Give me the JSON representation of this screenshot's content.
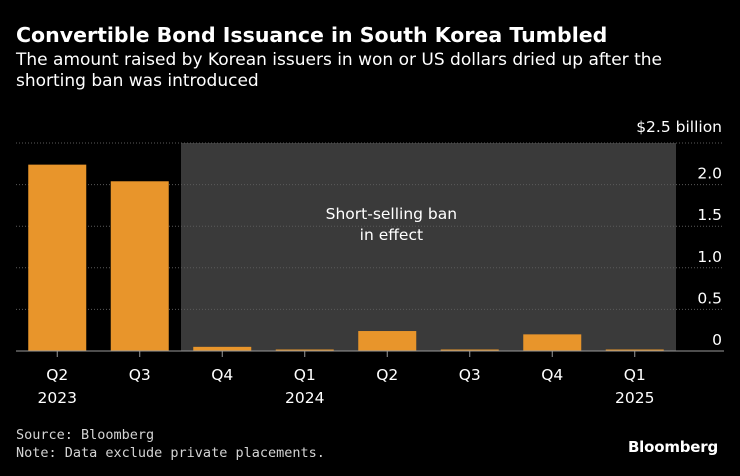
{
  "title": "Convertible Bond Issuance in South Korea Tumbled",
  "subtitle": "The amount raised by Korean issuers in won or US dollars dried up after the shorting ban was introduced",
  "source": "Source: Bloomberg",
  "note": "Note: Data exclude private placements.",
  "brand": "Bloomberg",
  "colors": {
    "background": "#000000",
    "bar": "#e8952b",
    "shaded_region": "#3a3a3a",
    "grid": "#5a5a5a",
    "text": "#ffffff"
  },
  "chart_data": {
    "type": "bar",
    "unit_label": "$2.5 billion",
    "categories": [
      "Q2",
      "Q3",
      "Q4",
      "Q1",
      "Q2",
      "Q3",
      "Q4",
      "Q1"
    ],
    "year_labels": [
      "2023",
      "",
      "",
      "2024",
      "",
      "",
      "",
      "2025"
    ],
    "values": [
      2.24,
      2.04,
      0.05,
      0.01,
      0.24,
      0.01,
      0.2,
      0.01
    ],
    "ylim": [
      0,
      2.5
    ],
    "yticks": [
      0,
      0.5,
      1.0,
      1.5,
      2.0
    ],
    "ytick_labels": [
      "0",
      "0.5",
      "1.0",
      "1.5",
      "2.0"
    ],
    "grid": true,
    "annotation": {
      "lines": [
        "Short-selling ban",
        "in effect"
      ],
      "start_index": 2,
      "end_index": 7
    }
  }
}
